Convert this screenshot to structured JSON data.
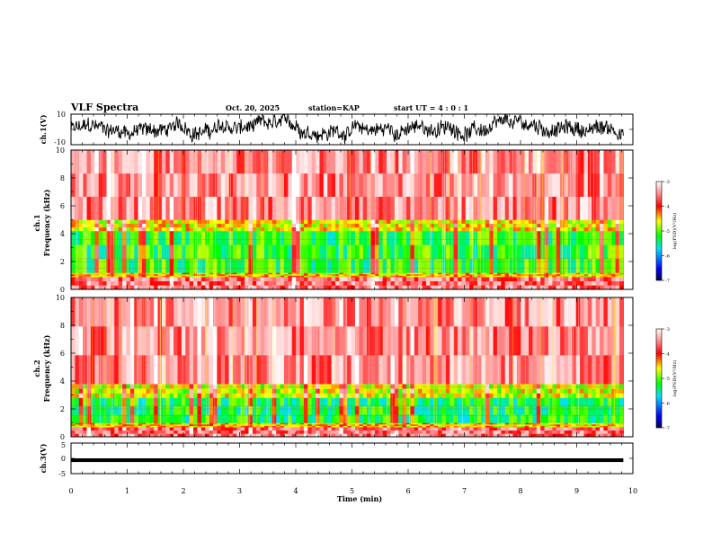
{
  "header": {
    "title": "VLF Spectra",
    "date": "Oct. 20, 2025",
    "station": "station=KAP",
    "start_ut": "start UT =  4 : 0  : 1"
  },
  "chart_data": [
    {
      "type": "line",
      "name": "ch1-waveform",
      "ylabel": "ch.1(V)",
      "ylim": [
        -10,
        10
      ],
      "yticks": [
        "10",
        "-10"
      ],
      "xlim": [
        0,
        10
      ],
      "description_values": "noisy waveform, mostly between -6 and 6 V"
    },
    {
      "type": "heatmap",
      "name": "ch1-spectrogram",
      "ylabel": "ch.1\nFrequency (kHz)",
      "ylim": [
        0,
        10
      ],
      "yticks": [
        "0",
        "2",
        "4",
        "6",
        "8",
        "10"
      ],
      "xlim": [
        0,
        10
      ],
      "data_end_min": 9.83,
      "colorbar": {
        "label": "log(PSD)(V²/Hz)",
        "range": [
          -7,
          -3
        ],
        "ticks": [
          "-3",
          "-4",
          "-5",
          "-6",
          "-7"
        ]
      },
      "bands_khz": [
        [
          0,
          0.9,
          -3.6
        ],
        [
          0.9,
          1.2,
          -4.5
        ],
        [
          1.2,
          4.2,
          -5.2
        ],
        [
          4.2,
          5.0,
          -4.6
        ],
        [
          5.0,
          10,
          -3.5
        ]
      ]
    },
    {
      "type": "heatmap",
      "name": "ch2-spectrogram",
      "ylabel": "ch.2\nFrequency (kHz)",
      "ylim": [
        0,
        10
      ],
      "yticks": [
        "0",
        "2",
        "4",
        "6",
        "8",
        "10"
      ],
      "xlim": [
        0,
        10
      ],
      "data_end_min": 9.83,
      "colorbar": {
        "label": "log(PSD)(V²/Hz)",
        "range": [
          -7,
          -3
        ],
        "ticks": [
          "-3",
          "-4",
          "-5",
          "-6",
          "-7"
        ]
      },
      "bands_khz": [
        [
          0,
          0.7,
          -3.6
        ],
        [
          0.7,
          1.0,
          -4.5
        ],
        [
          1.0,
          2.8,
          -5.3
        ],
        [
          2.8,
          3.8,
          -4.7
        ],
        [
          3.8,
          10,
          -3.5
        ]
      ]
    },
    {
      "type": "line",
      "name": "ch3-waveform",
      "ylabel": "ch.3(V)",
      "ylim": [
        -5,
        5
      ],
      "yticks": [
        "5",
        "0",
        "-5"
      ],
      "xlim": [
        0,
        10
      ],
      "band_v": [
        -1.2,
        0.0
      ]
    }
  ],
  "xaxis": {
    "label": "Time (min)",
    "ticks": [
      "0",
      "1",
      "2",
      "3",
      "4",
      "5",
      "6",
      "7",
      "8",
      "9",
      "10"
    ]
  },
  "colors": {
    "colormap": [
      "#000060",
      "#0000ff",
      "#00ffff",
      "#00ff00",
      "#ffff00",
      "#ff0000",
      "#ffffff"
    ]
  }
}
